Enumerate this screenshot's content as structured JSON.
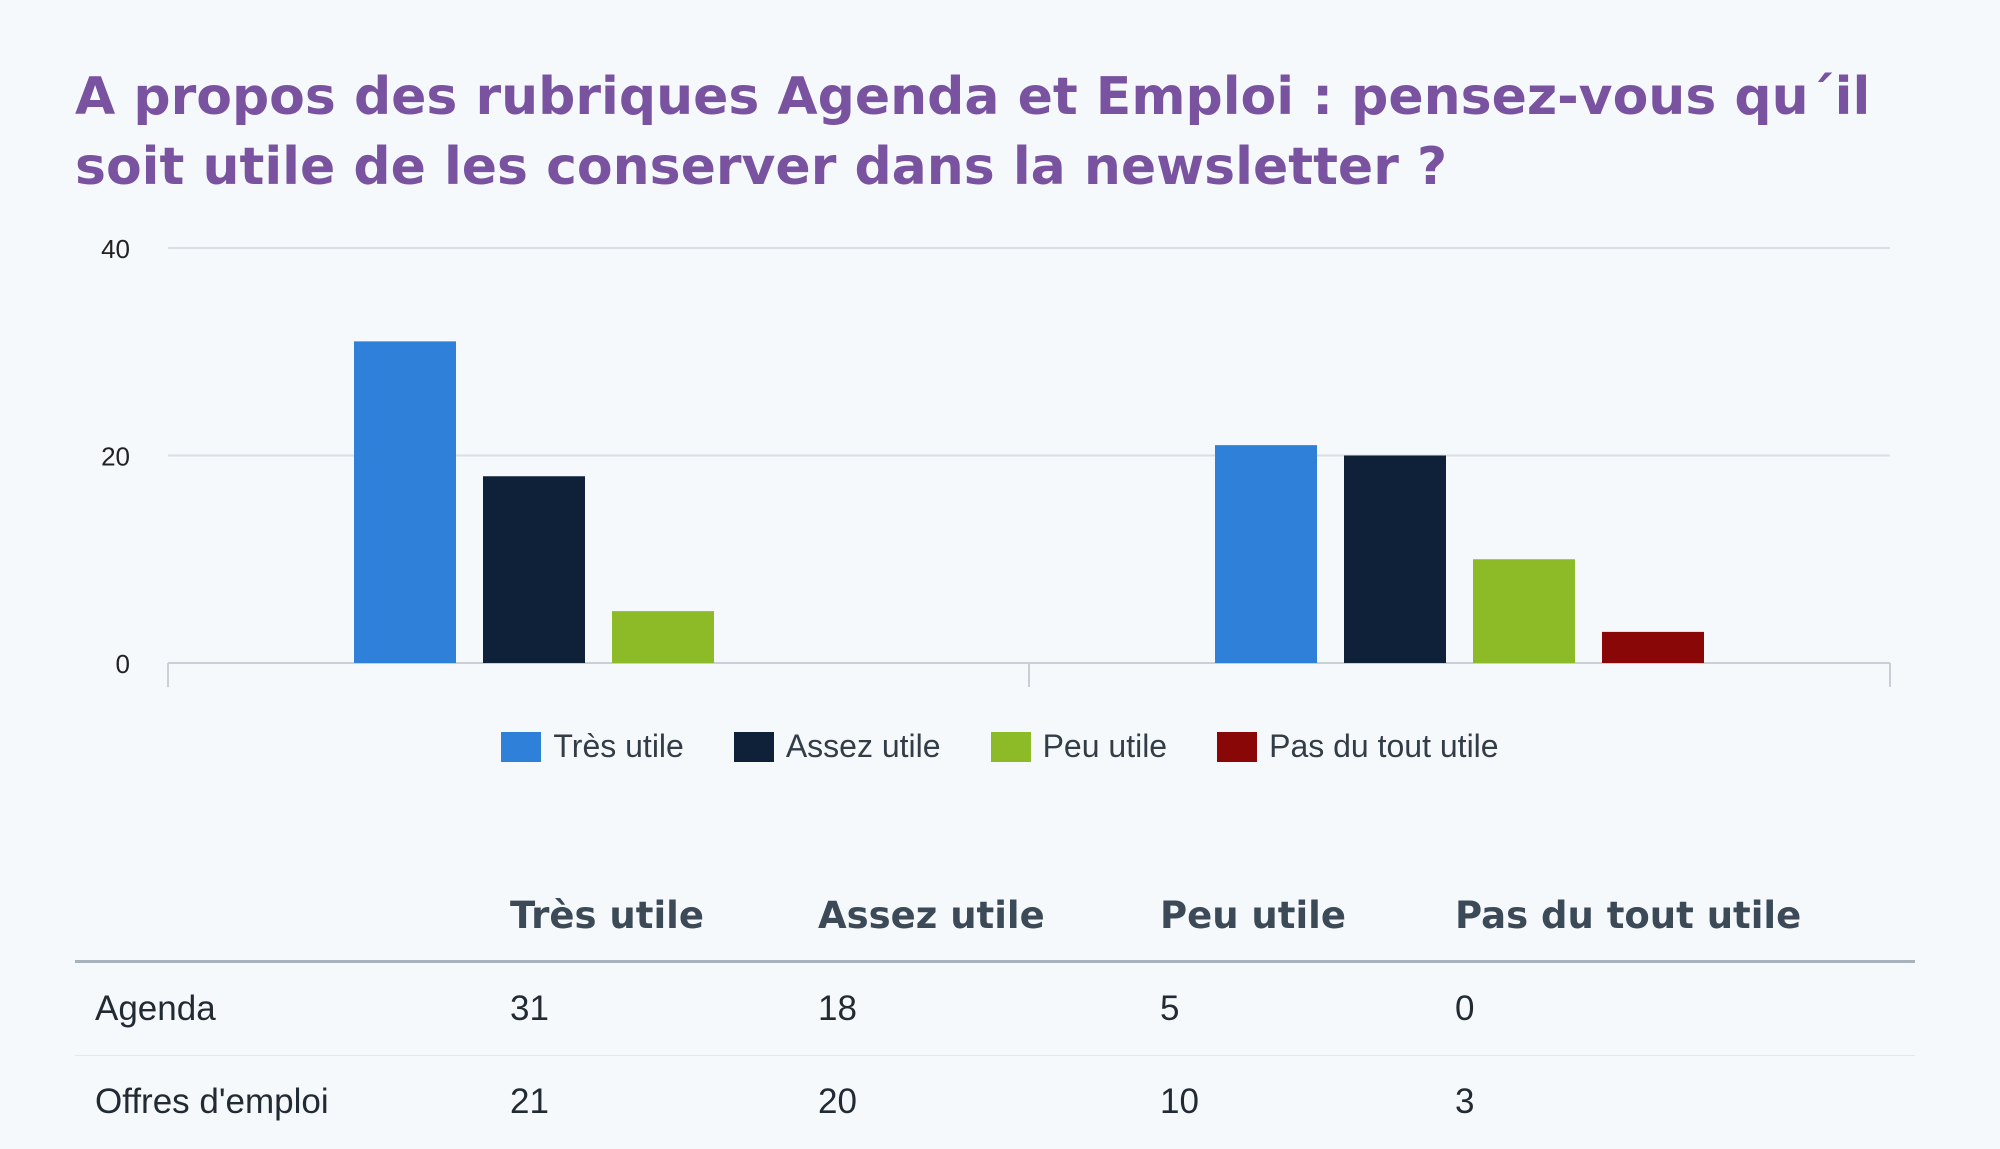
{
  "chart_data": {
    "type": "bar",
    "title": "A propos des rubriques Agenda et Emploi : pensez-vous qu´il soit utile de les conserver dans la newsletter ?",
    "categories": [
      "Agenda",
      "Offres d'emploi"
    ],
    "series": [
      {
        "name": "Très utile",
        "color": "#2f80d9",
        "values": [
          31,
          21
        ]
      },
      {
        "name": "Assez utile",
        "color": "#0e2139",
        "values": [
          18,
          20
        ]
      },
      {
        "name": "Peu utile",
        "color": "#8cbb27",
        "values": [
          5,
          10
        ]
      },
      {
        "name": "Pas du tout utile",
        "color": "#8a0707",
        "values": [
          0,
          3
        ]
      }
    ],
    "ylim": [
      0,
      40
    ],
    "yticks": [
      0,
      20,
      40
    ],
    "grid": true,
    "legend": "bottom-center"
  },
  "table": {
    "headers": [
      "",
      "Très utile",
      "Assez utile",
      "Peu utile",
      "Pas du tout utile"
    ],
    "rows": [
      [
        "Agenda",
        "31",
        "18",
        "5",
        "0"
      ],
      [
        "Offres d'emploi",
        "21",
        "20",
        "10",
        "3"
      ]
    ]
  }
}
